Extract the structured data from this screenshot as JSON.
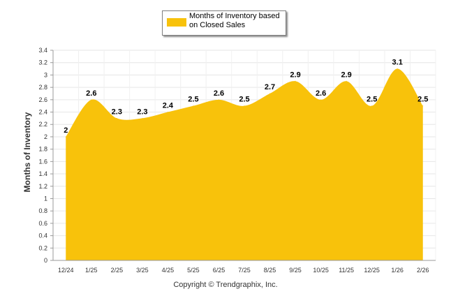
{
  "legend": {
    "label": "Months of Inventory based on Closed Sales",
    "color": "#f8c20b"
  },
  "footer": {
    "copyright": "Copyright © Trendgraphix, Inc."
  },
  "chart_data": {
    "type": "area",
    "title": "",
    "xlabel": "",
    "ylabel": "Months of Inventory",
    "categories": [
      "12/24",
      "1/25",
      "2/25",
      "3/25",
      "4/25",
      "5/25",
      "6/25",
      "7/25",
      "8/25",
      "9/25",
      "10/25",
      "11/25",
      "12/25",
      "1/26",
      "2/26"
    ],
    "series": [
      {
        "name": "Months of Inventory based on Closed Sales",
        "values": [
          2,
          2.6,
          2.3,
          2.3,
          2.4,
          2.5,
          2.6,
          2.5,
          2.7,
          2.9,
          2.6,
          2.9,
          2.5,
          3.1,
          2.5
        ],
        "color": "#f8c20b"
      }
    ],
    "data_labels": [
      "2",
      "2.6",
      "2.3",
      "2.3",
      "2.4",
      "2.5",
      "2.6",
      "2.5",
      "2.7",
      "2.9",
      "2.6",
      "2.9",
      "2.5",
      "3.1",
      "2.5"
    ],
    "yticks": [
      "0",
      "0.2",
      "0.4",
      "0.6",
      "0.8",
      "1",
      "1.2",
      "1.4",
      "1.6",
      "1.8",
      "2",
      "2.2",
      "2.4",
      "2.6",
      "2.8",
      "3",
      "3.2",
      "3.4"
    ],
    "ylim": [
      0,
      3.4
    ],
    "grid": true,
    "legend_position": "top-center"
  }
}
